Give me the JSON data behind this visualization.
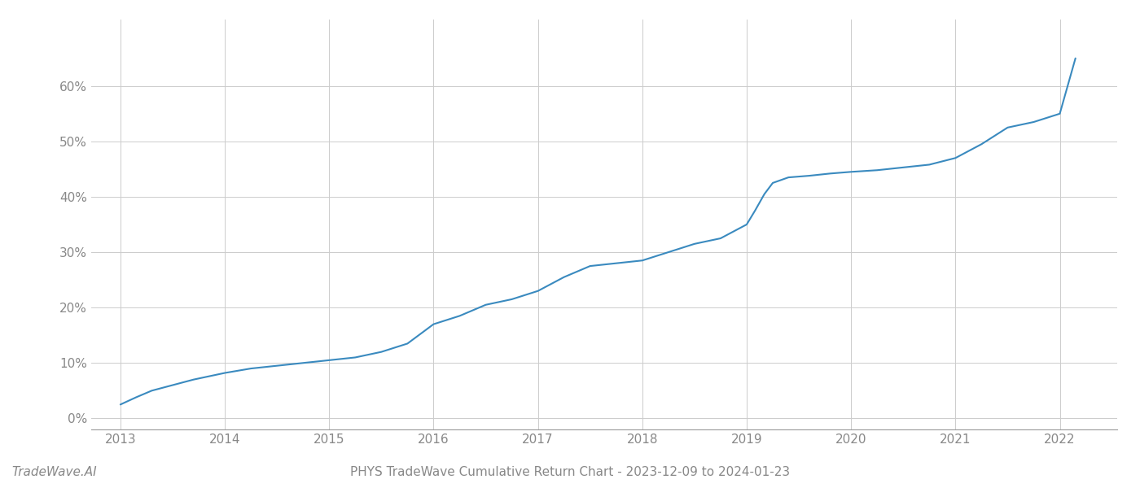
{
  "title": "PHYS TradeWave Cumulative Return Chart - 2023-12-09 to 2024-01-23",
  "watermark": "TradeWave.AI",
  "line_color": "#3a8abf",
  "background_color": "#ffffff",
  "grid_color": "#cccccc",
  "x_years": [
    2013,
    2014,
    2015,
    2016,
    2017,
    2018,
    2019,
    2020,
    2021,
    2022
  ],
  "data_x": [
    2013.0,
    2013.15,
    2013.3,
    2013.5,
    2013.7,
    2013.9,
    2014.0,
    2014.25,
    2014.5,
    2014.75,
    2015.0,
    2015.25,
    2015.5,
    2015.75,
    2016.0,
    2016.25,
    2016.5,
    2016.75,
    2017.0,
    2017.25,
    2017.5,
    2017.75,
    2018.0,
    2018.25,
    2018.5,
    2018.75,
    2019.0,
    2019.08,
    2019.17,
    2019.25,
    2019.4,
    2019.6,
    2019.8,
    2020.0,
    2020.25,
    2020.5,
    2020.75,
    2021.0,
    2021.25,
    2021.5,
    2021.75,
    2022.0,
    2022.15
  ],
  "data_y": [
    2.5,
    3.8,
    5.0,
    6.0,
    7.0,
    7.8,
    8.2,
    9.0,
    9.5,
    10.0,
    10.5,
    11.0,
    12.0,
    13.5,
    17.0,
    18.5,
    20.5,
    21.5,
    23.0,
    25.5,
    27.5,
    28.0,
    28.5,
    30.0,
    31.5,
    32.5,
    35.0,
    37.5,
    40.5,
    42.5,
    43.5,
    43.8,
    44.2,
    44.5,
    44.8,
    45.3,
    45.8,
    47.0,
    49.5,
    52.5,
    53.5,
    55.0,
    65.0
  ],
  "ylim": [
    -2,
    72
  ],
  "yticks": [
    0,
    10,
    20,
    30,
    40,
    50,
    60
  ],
  "xlim": [
    2012.72,
    2022.55
  ],
  "line_width": 1.5,
  "title_fontsize": 11,
  "watermark_fontsize": 11,
  "tick_fontsize": 11,
  "tick_color": "#888888",
  "spine_color": "#cccccc"
}
